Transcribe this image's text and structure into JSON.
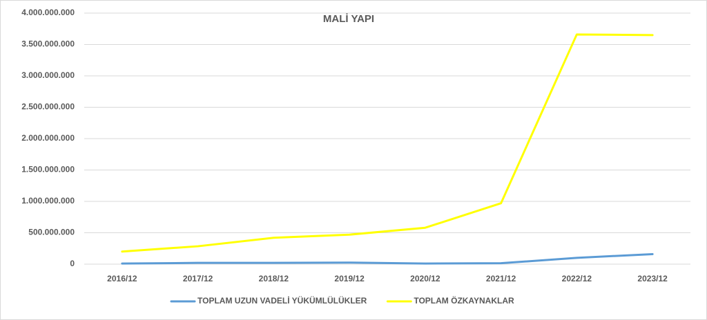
{
  "chart_data": {
    "type": "line",
    "title": "MALİ YAPI",
    "categories": [
      "2016/12",
      "2017/12",
      "2018/12",
      "2019/12",
      "2020/12",
      "2021/12",
      "2022/12",
      "2023/12"
    ],
    "series": [
      {
        "name": "TOPLAM UZUN VADELİ YÜKÜMLÜLÜKLER",
        "color": "#5b9bd5",
        "values": [
          10000000,
          20000000,
          20000000,
          25000000,
          10000000,
          15000000,
          100000000,
          160000000
        ]
      },
      {
        "name": "TOPLAM ÖZKAYNAKLAR",
        "color": "#ffff00",
        "values": [
          200000000,
          285000000,
          420000000,
          470000000,
          580000000,
          970000000,
          3660000000,
          3650000000
        ]
      }
    ],
    "ylim": [
      0,
      4000000000
    ],
    "yticks": [
      0,
      {
        "value": 500000000,
        "label": "500.000.000"
      },
      {
        "value": 1000000000,
        "label": "1.000.000.000"
      },
      {
        "value": 1500000000,
        "label": "1.500.000.000"
      },
      {
        "value": 2000000000,
        "label": "2.000.000.000"
      },
      {
        "value": 2500000000,
        "label": "2.500.000.000"
      },
      {
        "value": 3000000000,
        "label": "3.000.000.000"
      },
      {
        "value": 3500000000,
        "label": "3.500.000.000"
      },
      {
        "value": 4000000000,
        "label": "4.000.000.000"
      }
    ],
    "grid": true,
    "legend": "bottom"
  }
}
